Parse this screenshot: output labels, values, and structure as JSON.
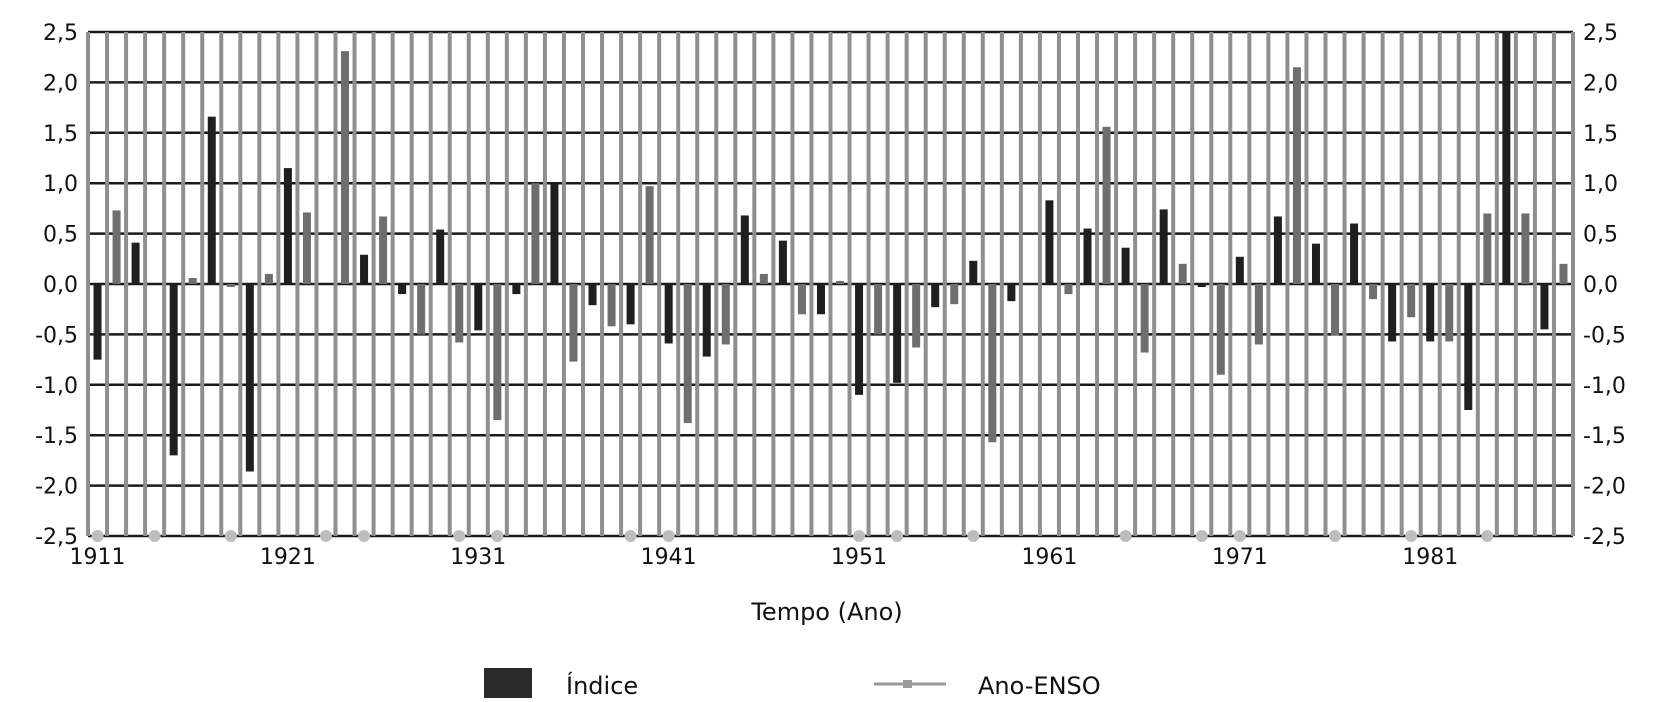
{
  "chart_data": {
    "type": "bar",
    "xlabel": "Tempo (Ano)",
    "ylabel": "",
    "ylim": [
      -2.5,
      2.5
    ],
    "yticks": [
      "2,5",
      "2,0",
      "1,5",
      "1,0",
      "0,5",
      "0,0",
      "-0,5",
      "-1,0",
      "-1,5",
      "-2,0",
      "-2,5"
    ],
    "yticks_right": [
      "2,5",
      "2,0",
      "1,5",
      "1,0",
      "0,5",
      "0,0",
      "-0,5",
      "-1,0",
      "-1,5",
      "-2,0",
      "-2,5"
    ],
    "x_tick_labels": [
      "1911",
      "1921",
      "1931",
      "1941",
      "1951",
      "1961",
      "1971",
      "1981"
    ],
    "grid": true,
    "legend_position": "bottom",
    "colors": {
      "bar_dark": "#1f1f1f",
      "bar_gray": "#6e6e6e",
      "enso_line": "#7a7a7a",
      "enso_marker": "#bdbdbd",
      "grid": "#1a1a1a"
    },
    "series": [
      {
        "name": "Índice",
        "x": [
          1911,
          1912,
          1913,
          1914,
          1915,
          1916,
          1917,
          1918,
          1919,
          1920,
          1921,
          1922,
          1923,
          1924,
          1925,
          1926,
          1927,
          1928,
          1929,
          1930,
          1931,
          1932,
          1933,
          1934,
          1935,
          1936,
          1937,
          1938,
          1939,
          1940,
          1941,
          1942,
          1943,
          1944,
          1945,
          1946,
          1947,
          1948,
          1949,
          1950,
          1951,
          1952,
          1953,
          1954,
          1955,
          1956,
          1957,
          1958,
          1959,
          1960,
          1961,
          1962,
          1963,
          1964,
          1965,
          1966,
          1967,
          1968,
          1969,
          1970,
          1971,
          1972,
          1973,
          1974,
          1975,
          1976,
          1977,
          1978,
          1979,
          1980,
          1981,
          1982,
          1983,
          1984,
          1985,
          1986,
          1987,
          1988
        ],
        "values": [
          -0.75,
          0.73,
          0.41,
          0.0,
          -1.7,
          0.06,
          1.66,
          -0.03,
          -1.86,
          0.1,
          1.15,
          0.71,
          0.0,
          2.31,
          0.29,
          0.67,
          -0.1,
          -0.5,
          0.54,
          -0.58,
          -0.46,
          -1.35,
          -0.1,
          1.0,
          1.0,
          -0.77,
          -0.21,
          -0.42,
          -0.4,
          0.97,
          -0.59,
          -1.38,
          -0.72,
          -0.6,
          0.68,
          0.1,
          0.43,
          -0.3,
          -0.3,
          0.03,
          -1.1,
          -0.5,
          -0.98,
          -0.63,
          -0.23,
          -0.2,
          0.23,
          -1.57,
          -0.17,
          0.0,
          0.83,
          -0.1,
          0.55,
          1.56,
          0.36,
          -0.68,
          0.74,
          0.2,
          -0.03,
          -0.9,
          0.27,
          -0.6,
          0.67,
          2.15,
          0.4,
          -0.51,
          0.6,
          -0.15,
          -0.57,
          -0.33,
          -0.57,
          -0.57,
          -1.25,
          0.7,
          2.5,
          0.7,
          -0.45,
          0.2
        ]
      },
      {
        "name": "Ano-ENSO",
        "marker_value": -2.5,
        "x": [
          1911,
          1914,
          1918,
          1923,
          1925,
          1930,
          1932,
          1939,
          1941,
          1951,
          1953,
          1957,
          1965,
          1969,
          1971,
          1976,
          1980,
          1984
        ]
      }
    ]
  },
  "legend": {
    "indice_label": "Índice",
    "enso_label": "Ano-ENSO"
  }
}
